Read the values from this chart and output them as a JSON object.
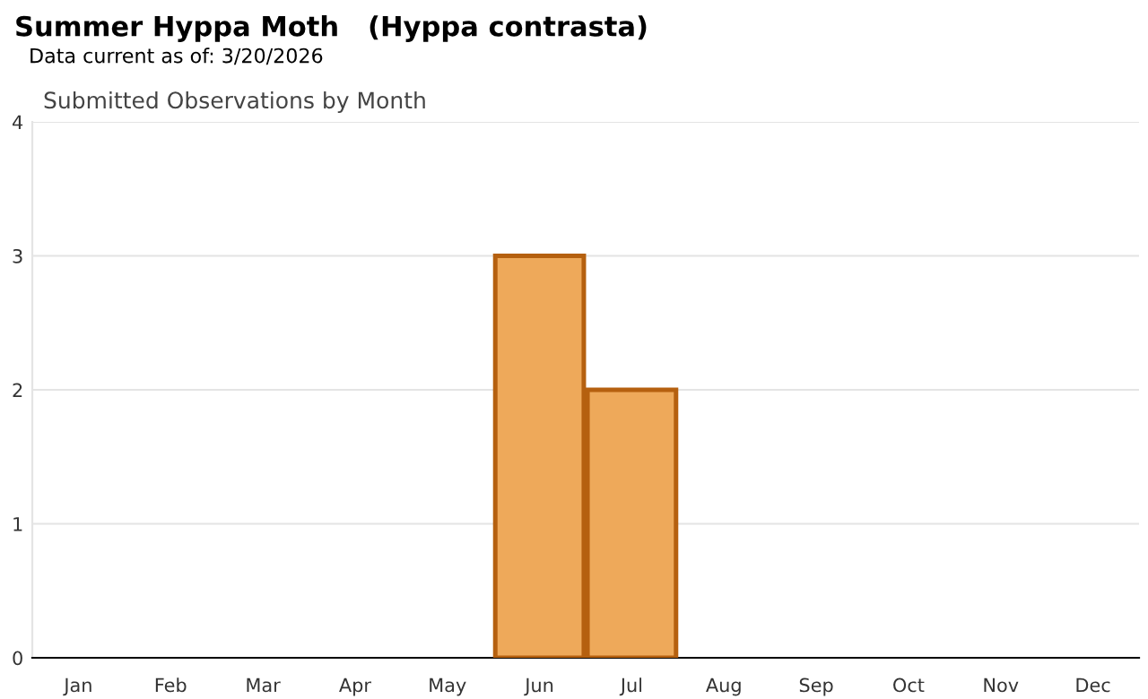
{
  "chart_data": {
    "type": "bar",
    "title": "Summer Hyppa Moth   (Hyppa contrasta)",
    "subtitle": "Data current as of: 3/20/2026",
    "annotations": [
      "Submitted Observations by Month"
    ],
    "categories": [
      "Jan",
      "Feb",
      "Mar",
      "Apr",
      "May",
      "Jun",
      "Jul",
      "Aug",
      "Sep",
      "Oct",
      "Nov",
      "Dec"
    ],
    "values": [
      0,
      0,
      0,
      0,
      0,
      3,
      2,
      0,
      0,
      0,
      0,
      0
    ],
    "color": "#eea95a",
    "ylim": [
      0,
      4
    ],
    "yticks": [
      0,
      1,
      2,
      3,
      4
    ],
    "grid": "y",
    "legend": false
  }
}
